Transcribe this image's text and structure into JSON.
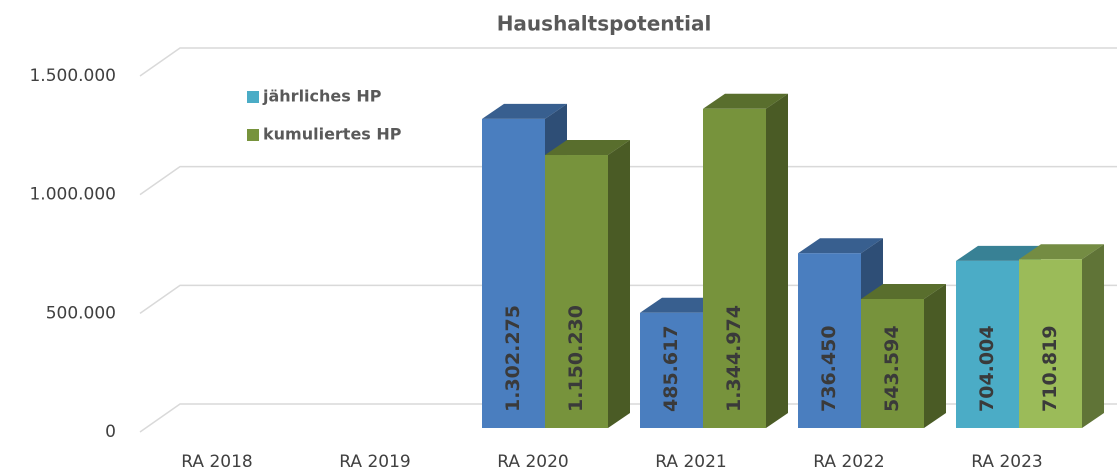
{
  "chart_data": {
    "type": "bar3d",
    "title": "Haushaltspotential",
    "categories": [
      "RA 2018",
      "RA 2019",
      "RA 2020",
      "RA 2021",
      "RA 2022",
      "RA 2023"
    ],
    "series": [
      {
        "name": "jährliches HP",
        "color": "#4bacc6",
        "colors": [
          "#4a7ebf",
          "#4a7ebf",
          "#4a7ebf",
          "#4a7ebf",
          "#4a7ebf",
          "#4bacc6"
        ],
        "values": [
          null,
          null,
          1302275,
          485617,
          736450,
          704004
        ],
        "value_labels": [
          null,
          null,
          "1.302.275",
          "485.617",
          "736.450",
          "704.004"
        ]
      },
      {
        "name": "kumuliertes HP",
        "color": "#77933c",
        "colors": [
          "#77933c",
          "#77933c",
          "#77933c",
          "#77933c",
          "#77933c",
          "#9bbb59"
        ],
        "values": [
          null,
          null,
          1150230,
          1344974,
          543594,
          710819
        ],
        "value_labels": [
          null,
          null,
          "1.150.230",
          "1.344.974",
          "543.594",
          "710.819"
        ]
      }
    ],
    "ylim": [
      0,
      1500000
    ],
    "yticks": [
      0,
      {
        "value": 500000,
        "label": "500.000"
      },
      {
        "value": 1000000,
        "label": "1.000.000"
      },
      {
        "value": 1500000,
        "label": "1.500.000"
      }
    ],
    "grid": true,
    "legend": "top-left"
  }
}
